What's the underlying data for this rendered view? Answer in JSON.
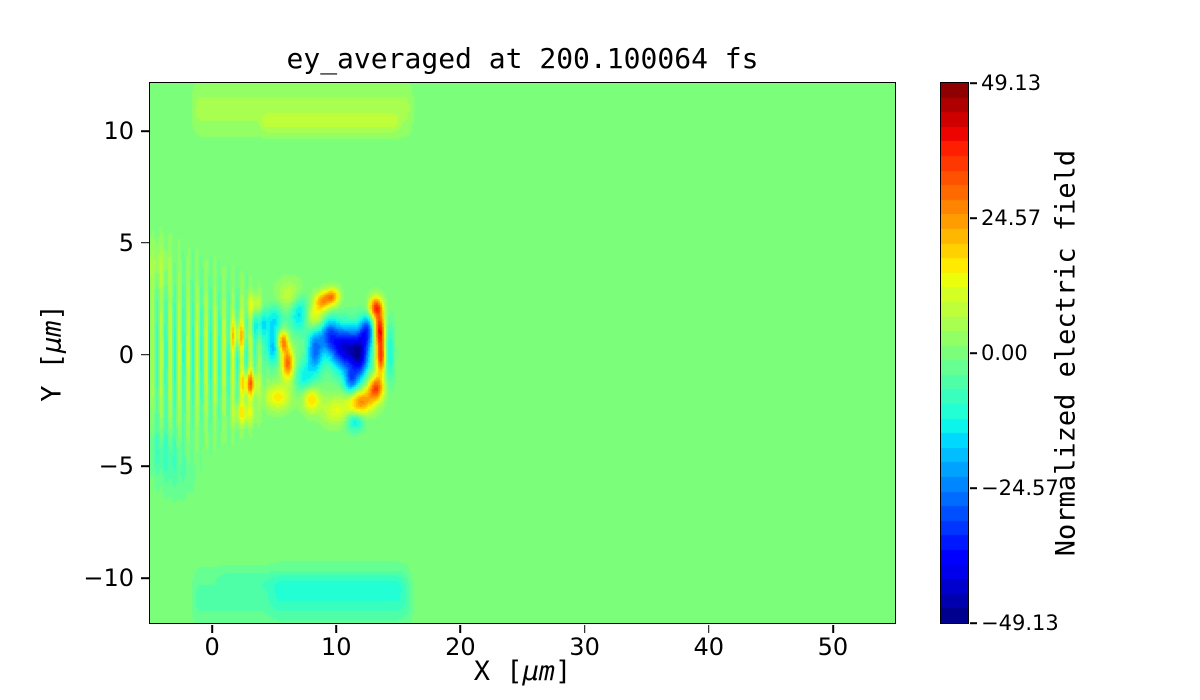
{
  "chart_data": {
    "type": "heatmap",
    "title": "ey_averaged at 200.100064 fs",
    "xlabel": {
      "prefix": "X [",
      "unit": "μm",
      "suffix": "]"
    },
    "ylabel": {
      "prefix": "Y [",
      "unit": "μm",
      "suffix": "]"
    },
    "xlim": [
      -5,
      55
    ],
    "ylim": [
      -12,
      12.15
    ],
    "grid": false,
    "xticks": {
      "values": [
        0,
        10,
        20,
        30,
        40,
        50
      ],
      "labels": [
        "0",
        "10",
        "20",
        "30",
        "40",
        "50"
      ]
    },
    "yticks": {
      "values": [
        10,
        5,
        0,
        -5,
        -10
      ],
      "labels": [
        "10",
        "5",
        "0",
        "−5",
        "−10"
      ]
    },
    "colorbar": {
      "label": "Normalized electric field",
      "vmin": -49.13,
      "vmax": 49.13,
      "levels": 37,
      "colormap": "jet",
      "position": "right",
      "ticks": {
        "values": [
          49.13,
          24.57,
          0,
          -24.57,
          -49.13
        ],
        "labels": [
          "49.13",
          "24.57",
          "0.00",
          "−24.57",
          "−49.13"
        ]
      }
    },
    "field": {
      "description": "laser pulse field in plasma: background 0, striped laser region on left, strong blobs at pulse front, boundary bands at top and bottom",
      "background_value": 0,
      "stripes": {
        "x0": -5.7,
        "x1": 4.8,
        "edge_in": 1.4,
        "edge_out": 2.2,
        "period": 0.72,
        "amp": 11,
        "sigma0": 2.7,
        "sigma_slope": -0.11
      },
      "bands": [
        {
          "x0": -2.0,
          "x1": 16.6,
          "y": 11.0,
          "sy": 0.75,
          "v": 5.0,
          "edge": 1.0
        },
        {
          "x0": 3.5,
          "x1": 15.6,
          "y": 10.35,
          "sy": 0.3,
          "v": 5.0,
          "edge": 1.0
        },
        {
          "x0": -2.0,
          "x1": 16.6,
          "y": -10.9,
          "sy": 0.85,
          "v": -5.0,
          "edge": 1.0
        },
        {
          "x0": 4.0,
          "x1": 16.3,
          "y": -10.8,
          "sy": 0.7,
          "v": -4.5,
          "edge": 1.5
        },
        {
          "x0": 0.0,
          "x1": 16.0,
          "y": -10.15,
          "sy": 0.35,
          "v": -3.0,
          "edge": 1.0
        }
      ],
      "blobs": [
        {
          "x": 3.0,
          "y": -1.3,
          "sx": 0.45,
          "sy": 0.4,
          "v": 26
        },
        {
          "x": 2.1,
          "y": 0.9,
          "sx": 0.5,
          "sy": 0.45,
          "v": 15
        },
        {
          "x": 3.4,
          "y": 2.2,
          "sx": 0.5,
          "sy": 0.4,
          "v": 12
        },
        {
          "x": 2.6,
          "y": -2.6,
          "sx": 0.6,
          "sy": 0.4,
          "v": 14
        },
        {
          "x": 3.9,
          "y": 1.4,
          "sx": 0.5,
          "sy": 0.5,
          "v": -14
        },
        {
          "x": 5.1,
          "y": 1.6,
          "sx": 0.5,
          "sy": 0.5,
          "v": -13
        },
        {
          "x": 4.9,
          "y": 0.3,
          "sx": 0.4,
          "sy": 0.55,
          "v": -18
        },
        {
          "x": 5.7,
          "y": 0.6,
          "sx": 0.3,
          "sy": 0.35,
          "v": 28
        },
        {
          "x": 6.1,
          "y": -0.4,
          "sx": 0.35,
          "sy": 0.5,
          "v": 30
        },
        {
          "x": 5.3,
          "y": -1.9,
          "sx": 0.7,
          "sy": 0.4,
          "v": 16
        },
        {
          "x": 7.1,
          "y": 1.9,
          "sx": 0.6,
          "sy": 0.6,
          "v": -20
        },
        {
          "x": 7.4,
          "y": -1.0,
          "sx": 0.5,
          "sy": 0.5,
          "v": -13
        },
        {
          "x": 6.4,
          "y": 2.6,
          "sx": 0.8,
          "sy": 0.5,
          "v": 11
        },
        {
          "x": 8.2,
          "y": 1.7,
          "sx": 0.6,
          "sy": 0.45,
          "v": 17
        },
        {
          "x": 8.9,
          "y": 2.4,
          "sx": 0.45,
          "sy": 0.3,
          "v": 22
        },
        {
          "x": 9.7,
          "y": 2.6,
          "sx": 0.4,
          "sy": 0.28,
          "v": 24
        },
        {
          "x": 8.3,
          "y": 0.2,
          "sx": 0.45,
          "sy": 0.75,
          "v": -26
        },
        {
          "x": 9.4,
          "y": 0.9,
          "sx": 0.5,
          "sy": 0.55,
          "v": -24
        },
        {
          "x": 10.6,
          "y": 0.3,
          "sx": 0.75,
          "sy": 0.7,
          "v": -40
        },
        {
          "x": 11.9,
          "y": 0.0,
          "sx": 0.55,
          "sy": 0.75,
          "v": -38
        },
        {
          "x": 12.5,
          "y": 1.1,
          "sx": 0.4,
          "sy": 0.5,
          "v": -26
        },
        {
          "x": 11.2,
          "y": -1.2,
          "sx": 0.4,
          "sy": 0.4,
          "v": -22
        },
        {
          "x": 13.2,
          "y": 2.1,
          "sx": 0.4,
          "sy": 0.35,
          "v": 34
        },
        {
          "x": 13.5,
          "y": 1.1,
          "sx": 0.3,
          "sy": 0.5,
          "v": 38
        },
        {
          "x": 13.6,
          "y": -0.1,
          "sx": 0.28,
          "sy": 0.55,
          "v": 34
        },
        {
          "x": 13.2,
          "y": -1.5,
          "sx": 0.45,
          "sy": 0.4,
          "v": 32
        },
        {
          "x": 12.0,
          "y": -2.1,
          "sx": 0.7,
          "sy": 0.4,
          "v": 26
        },
        {
          "x": 11.5,
          "y": -3.0,
          "sx": 0.5,
          "sy": 0.3,
          "v": -15
        },
        {
          "x": 10.0,
          "y": -2.5,
          "sx": 0.8,
          "sy": 0.45,
          "v": 12
        },
        {
          "x": 8.0,
          "y": -2.0,
          "sx": 0.5,
          "sy": 0.4,
          "v": 18
        },
        {
          "x": 14.3,
          "y": 0.1,
          "sx": 0.28,
          "sy": 0.95,
          "v": -13
        },
        {
          "x": -4.0,
          "y": -4.3,
          "sx": 0.9,
          "sy": 0.8,
          "v": -6
        },
        {
          "x": -2.8,
          "y": -5.3,
          "sx": 1.0,
          "sy": 0.8,
          "v": -4
        },
        {
          "x": -4.3,
          "y": 4.0,
          "sx": 0.8,
          "sy": 0.8,
          "v": 5
        }
      ]
    }
  }
}
